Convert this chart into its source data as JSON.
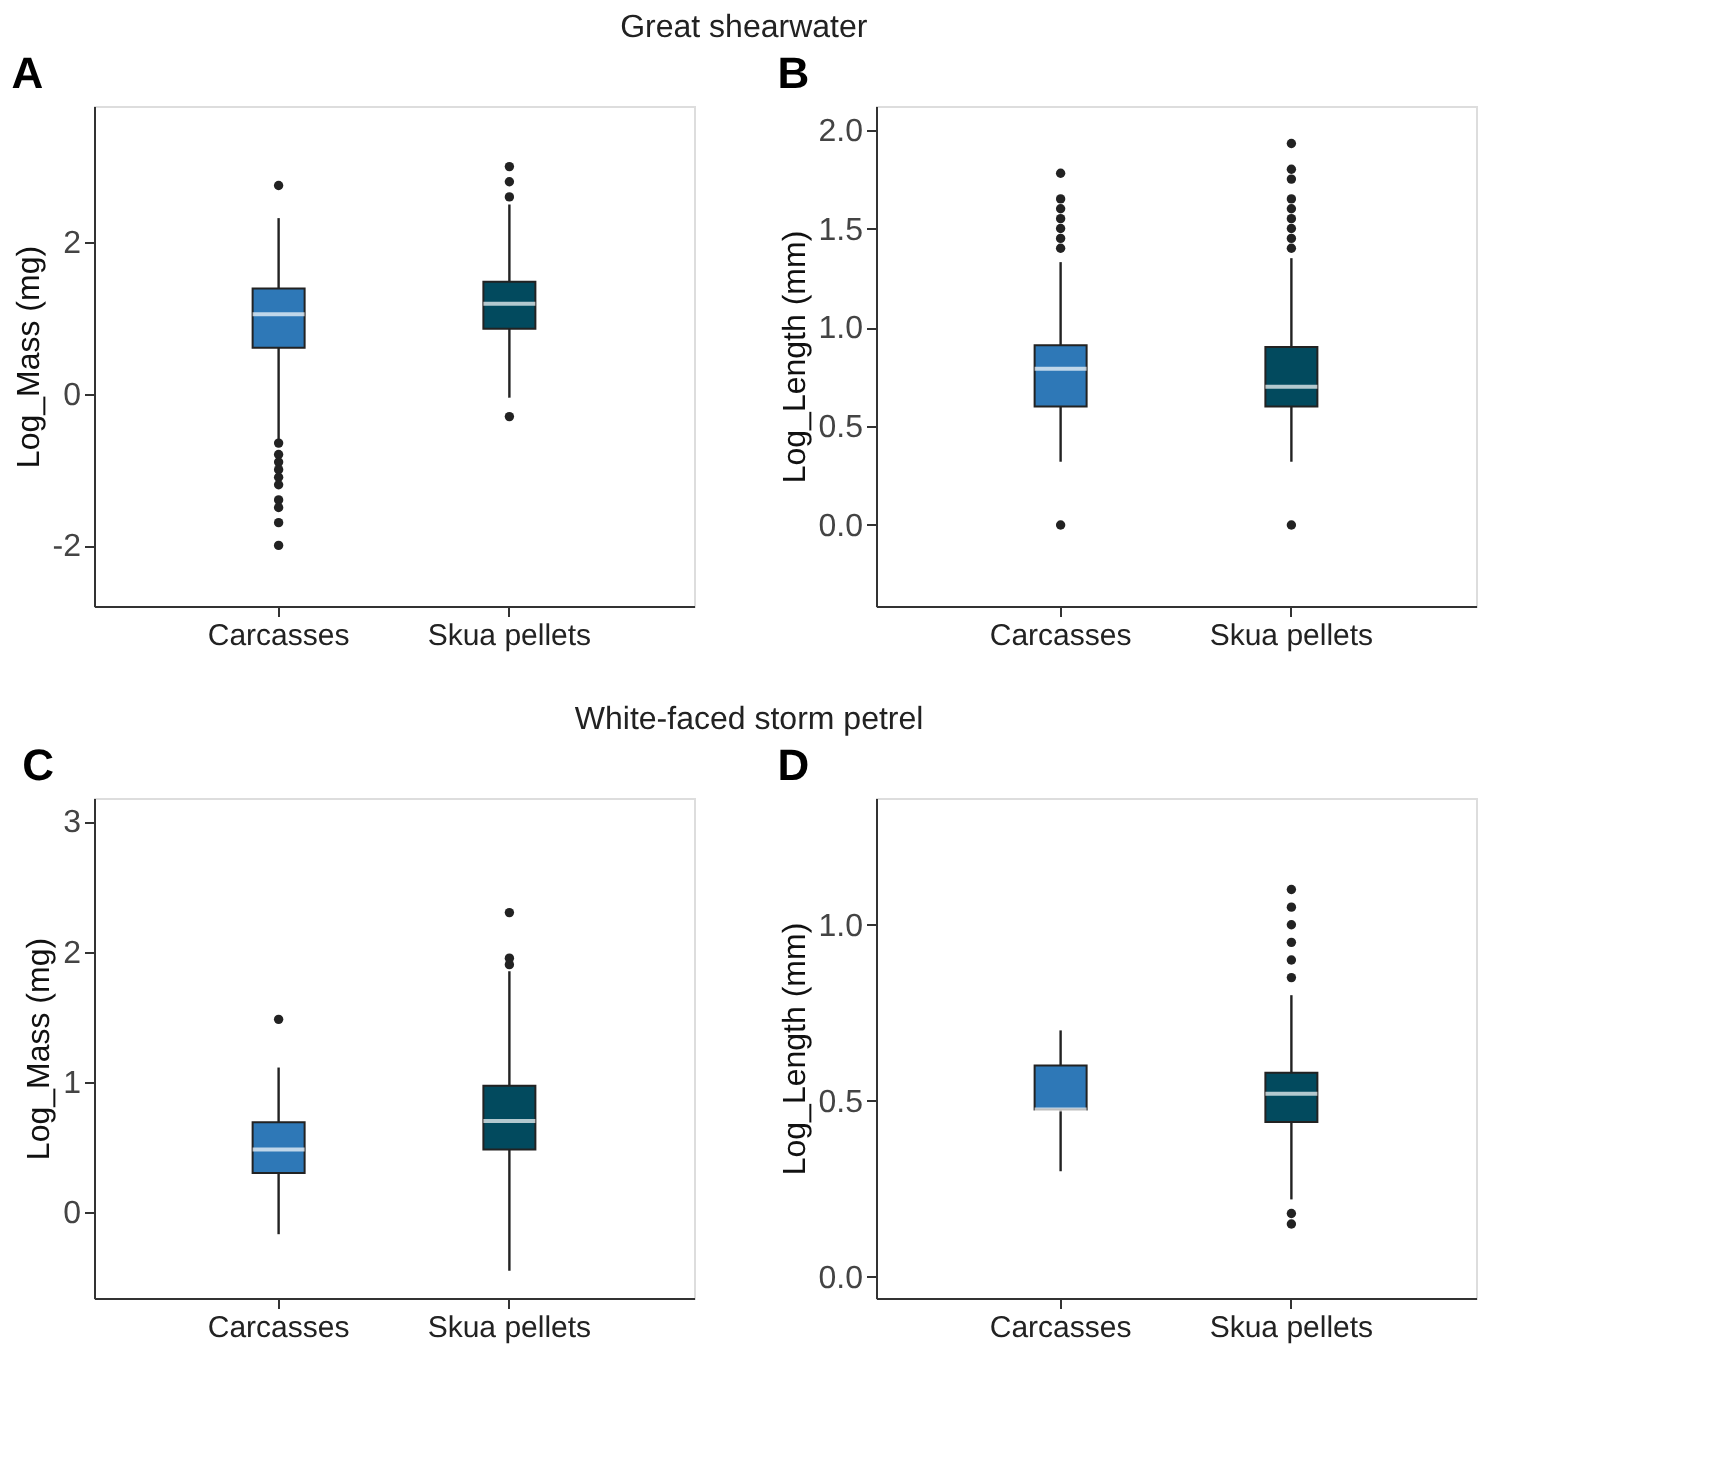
{
  "chart_data": [
    {
      "type": "box",
      "title": "A",
      "annotations": [
        "Great shearwater"
      ],
      "ylabel": "Log_Mass (mg)",
      "categories": [
        "Carcasses",
        "Skua pellets"
      ],
      "colors": [
        "#2e78b7",
        "#024a5e"
      ],
      "ylim": [
        -2.8,
        3.8
      ],
      "yticks": [
        -2,
        0,
        2
      ],
      "grid": false,
      "boxes": [
        {
          "low": -0.6,
          "q1": 0.61,
          "median": 1.05,
          "q3": 1.39,
          "high": 2.32,
          "outliers": [
            -0.65,
            -0.8,
            -0.9,
            -1.0,
            -1.1,
            -1.2,
            -1.4,
            -1.5,
            -1.7,
            -2.0,
            2.75
          ]
        },
        {
          "low": -0.05,
          "q1": 0.86,
          "median": 1.19,
          "q3": 1.48,
          "high": 2.5,
          "outliers": [
            -0.3,
            2.6,
            2.8,
            3.0
          ]
        }
      ]
    },
    {
      "type": "box",
      "title": "B",
      "ylabel": "Log_Length (mm)",
      "categories": [
        "Carcasses",
        "Skua pellets"
      ],
      "colors": [
        "#2e78b7",
        "#024a5e"
      ],
      "ylim": [
        -0.41,
        2.12
      ],
      "yticks": [
        {
          "value": 0,
          "label": "0.0"
        },
        0.5,
        {
          "value": 1,
          "label": "1.0"
        },
        1.5,
        {
          "value": 2,
          "label": "2.0"
        }
      ],
      "grid": false,
      "boxes": [
        {
          "low": 0.32,
          "q1": 0.6,
          "median": 0.79,
          "q3": 0.91,
          "high": 1.33,
          "outliers": [
            0.0,
            1.4,
            1.45,
            1.5,
            1.55,
            1.6,
            1.65,
            1.78
          ]
        },
        {
          "low": 0.32,
          "q1": 0.6,
          "median": 0.7,
          "q3": 0.9,
          "high": 1.35,
          "outliers": [
            0.0,
            1.4,
            1.45,
            1.5,
            1.55,
            1.6,
            1.65,
            1.75,
            1.8,
            1.93
          ]
        }
      ]
    },
    {
      "type": "box",
      "title": "C",
      "annotations": [
        "White-faced storm petrel"
      ],
      "ylabel": "Log_Mass (mg)",
      "categories": [
        "Carcasses",
        "Skua pellets"
      ],
      "colors": [
        "#2e78b7",
        "#024a5e"
      ],
      "ylim": [
        -0.66,
        3.18
      ],
      "yticks": [
        0,
        1,
        2,
        3
      ],
      "grid": false,
      "boxes": [
        {
          "low": -0.17,
          "q1": 0.3,
          "median": 0.48,
          "q3": 0.69,
          "high": 1.11,
          "outliers": [
            1.48
          ]
        },
        {
          "low": -0.45,
          "q1": 0.48,
          "median": 0.7,
          "q3": 0.97,
          "high": 1.85,
          "outliers": [
            1.9,
            1.95,
            2.3
          ]
        }
      ]
    },
    {
      "type": "box",
      "title": "D",
      "ylabel": "Log_Length (mm)",
      "categories": [
        "Carcasses",
        "Skua pellets"
      ],
      "colors": [
        "#2e78b7",
        "#024a5e"
      ],
      "ylim": [
        -0.06,
        1.36
      ],
      "yticks": [
        {
          "value": 0,
          "label": "0.0"
        },
        0.5,
        {
          "value": 1,
          "label": "1.0"
        }
      ],
      "grid": false,
      "boxes": [
        {
          "low": 0.3,
          "q1": 0.475,
          "median": 0.475,
          "q3": 0.6,
          "high": 0.7
        },
        {
          "low": 0.22,
          "q1": 0.44,
          "median": 0.52,
          "q3": 0.58,
          "high": 0.8,
          "outliers": [
            0.15,
            0.18,
            0.85,
            0.9,
            0.95,
            1.0,
            1.05,
            1.1
          ]
        }
      ]
    }
  ]
}
